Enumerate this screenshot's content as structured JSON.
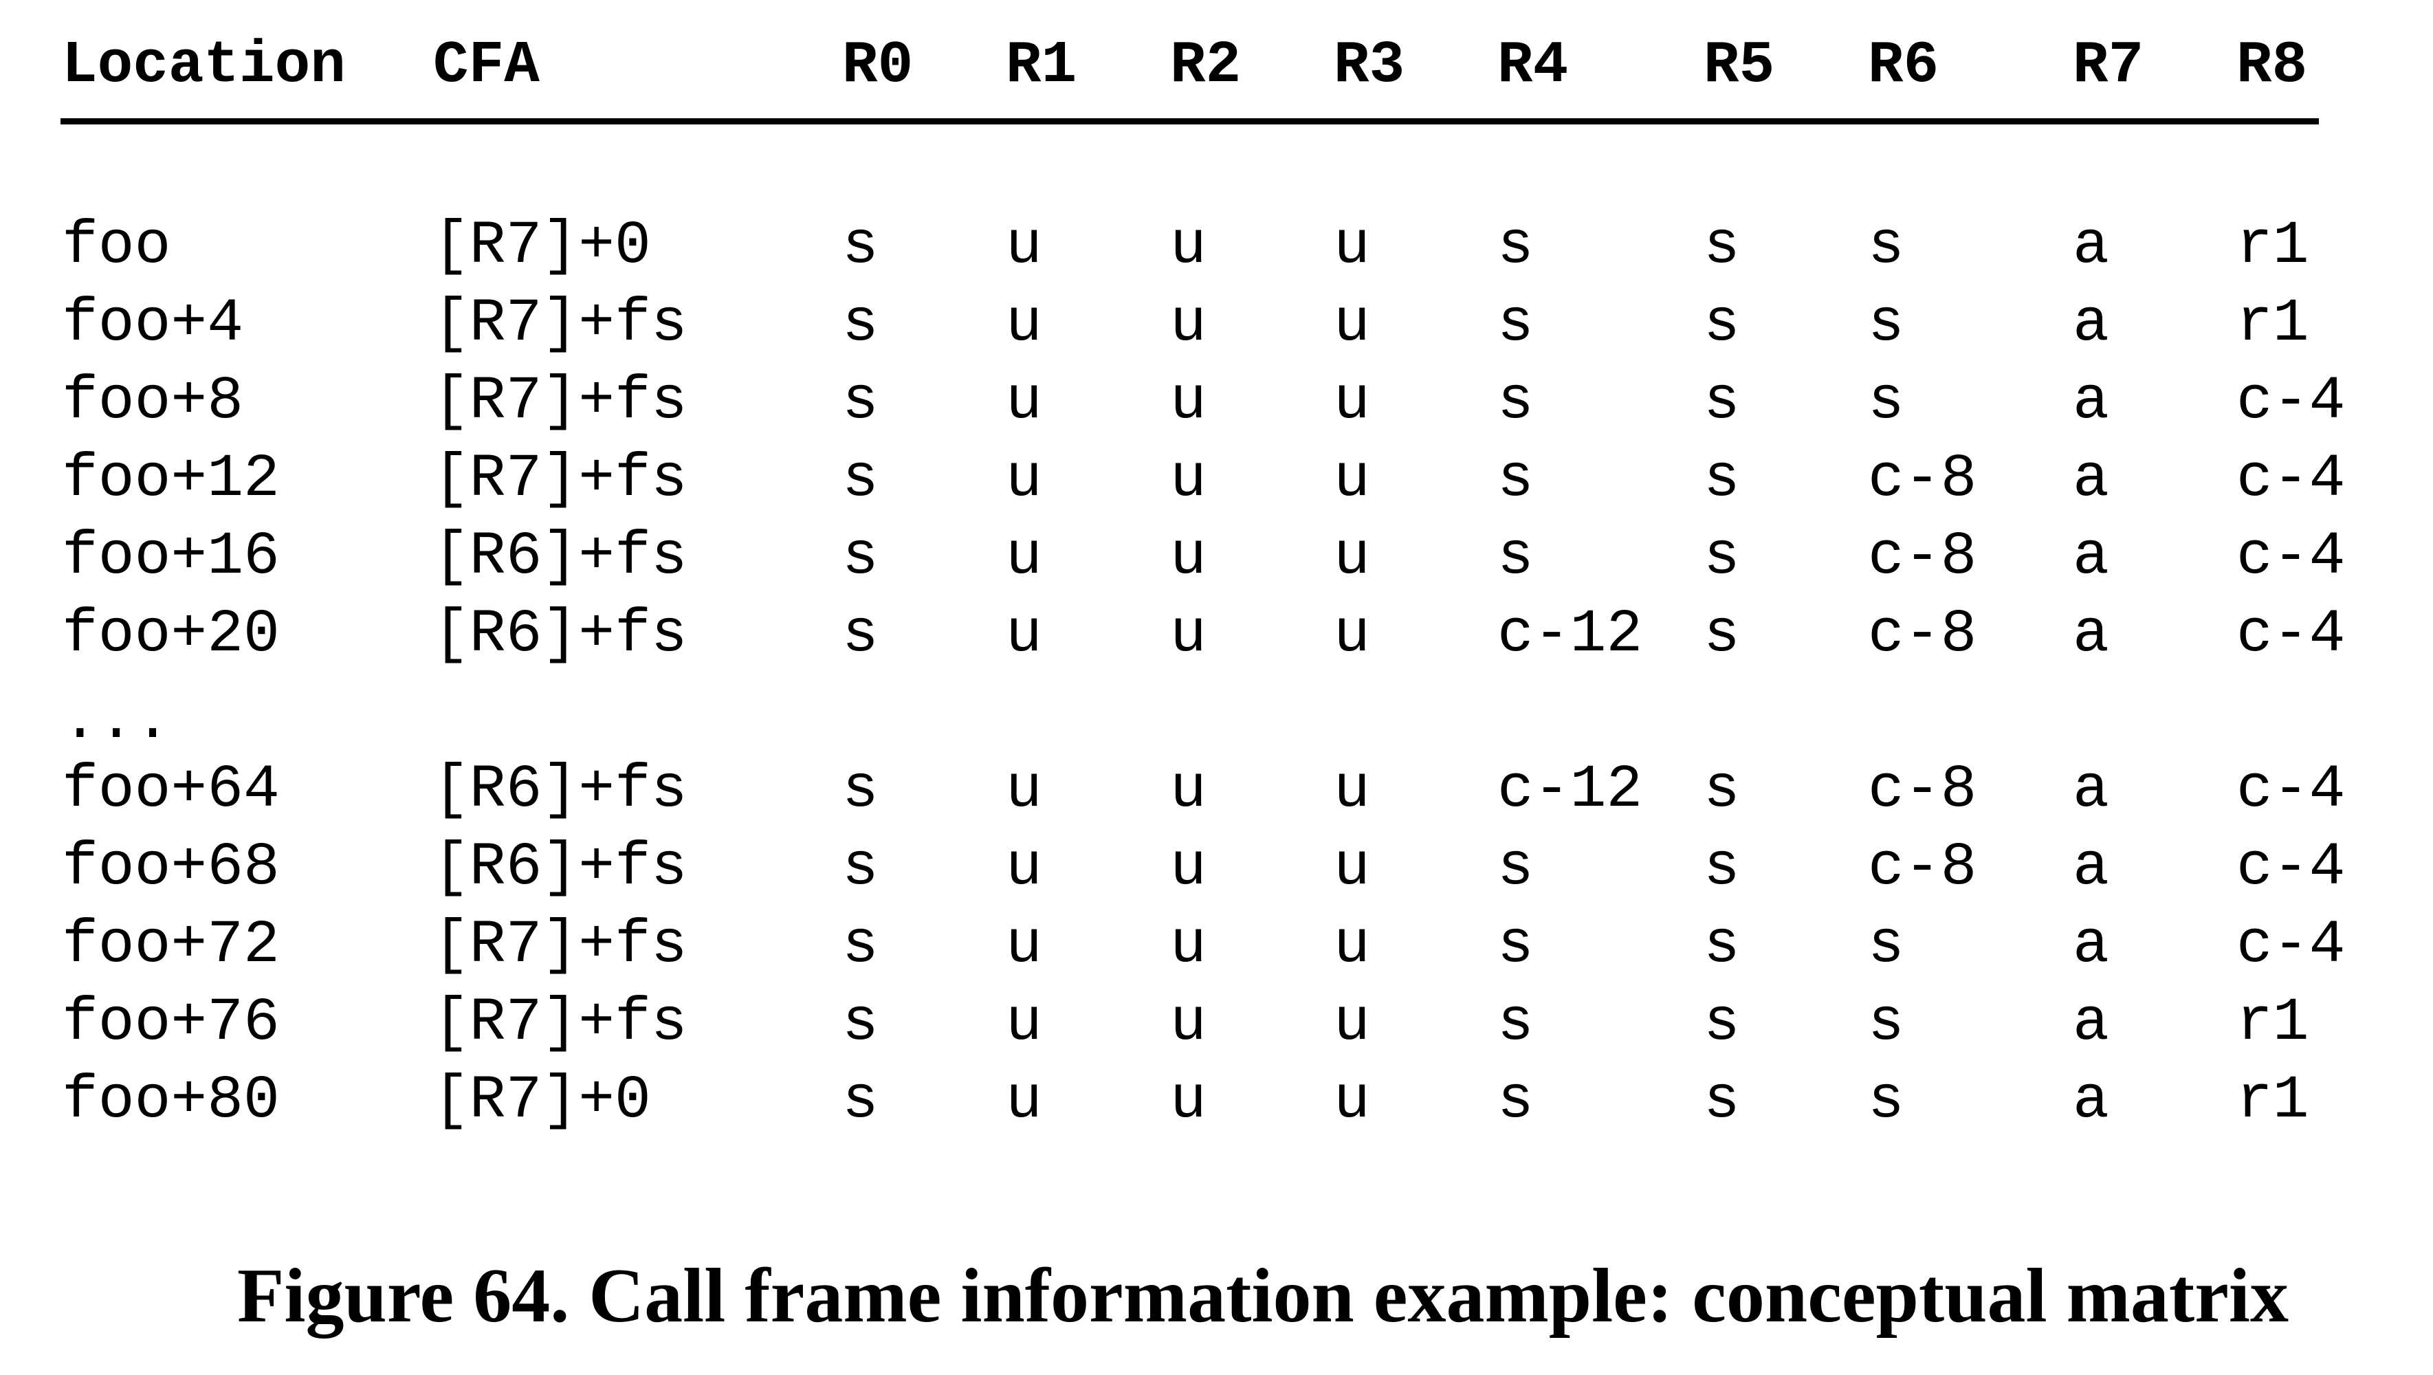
{
  "headers": [
    "Location",
    "CFA",
    "R0",
    "R1",
    "R2",
    "R3",
    "R4",
    "R5",
    "R6",
    "R7",
    "R8"
  ],
  "rows_before_ellipsis": [
    [
      "foo",
      "[R7]+0",
      "s",
      "u",
      "u",
      "u",
      "s",
      "s",
      "s",
      "a",
      "r1"
    ],
    [
      "foo+4",
      "[R7]+fs",
      "s",
      "u",
      "u",
      "u",
      "s",
      "s",
      "s",
      "a",
      "r1"
    ],
    [
      "foo+8",
      "[R7]+fs",
      "s",
      "u",
      "u",
      "u",
      "s",
      "s",
      "s",
      "a",
      "c-4"
    ],
    [
      "foo+12",
      "[R7]+fs",
      "s",
      "u",
      "u",
      "u",
      "s",
      "s",
      "c-8",
      "a",
      "c-4"
    ],
    [
      "foo+16",
      "[R6]+fs",
      "s",
      "u",
      "u",
      "u",
      "s",
      "s",
      "c-8",
      "a",
      "c-4"
    ],
    [
      "foo+20",
      "[R6]+fs",
      "s",
      "u",
      "u",
      "u",
      "c-12",
      "s",
      "c-8",
      "a",
      "c-4"
    ]
  ],
  "ellipsis": "...",
  "rows_after_ellipsis": [
    [
      "foo+64",
      "[R6]+fs",
      "s",
      "u",
      "u",
      "u",
      "c-12",
      "s",
      "c-8",
      "a",
      "c-4"
    ],
    [
      "foo+68",
      "[R6]+fs",
      "s",
      "u",
      "u",
      "u",
      "s",
      "s",
      "c-8",
      "a",
      "c-4"
    ],
    [
      "foo+72",
      "[R7]+fs",
      "s",
      "u",
      "u",
      "u",
      "s",
      "s",
      "s",
      "a",
      "c-4"
    ],
    [
      "foo+76",
      "[R7]+fs",
      "s",
      "u",
      "u",
      "u",
      "s",
      "s",
      "s",
      "a",
      "r1"
    ],
    [
      "foo+80",
      "[R7]+0",
      "s",
      "u",
      "u",
      "u",
      "s",
      "s",
      "s",
      "a",
      "r1"
    ]
  ],
  "caption": "Figure 64. Call frame information example: conceptual matrix"
}
